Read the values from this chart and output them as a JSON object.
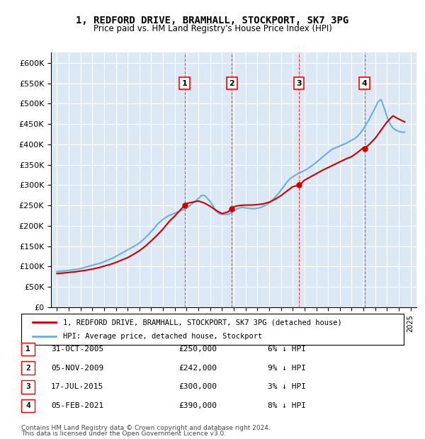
{
  "title": "1, REDFORD DRIVE, BRAMHALL, STOCKPORT, SK7 3PG",
  "subtitle": "Price paid vs. HM Land Registry's House Price Index (HPI)",
  "legend_label1": "1, REDFORD DRIVE, BRAMHALL, STOCKPORT, SK7 3PG (detached house)",
  "legend_label2": "HPI: Average price, detached house, Stockport",
  "footer1": "Contains HM Land Registry data © Crown copyright and database right 2024.",
  "footer2": "This data is licensed under the Open Government Licence v3.0.",
  "transactions": [
    {
      "num": 1,
      "date": "31-OCT-2005",
      "price": 250000,
      "pct": "6%",
      "x": 2005.83
    },
    {
      "num": 2,
      "date": "05-NOV-2009",
      "price": 242000,
      "pct": "9%",
      "x": 2009.84
    },
    {
      "num": 3,
      "date": "17-JUL-2015",
      "price": 300000,
      "pct": "3%",
      "x": 2015.54
    },
    {
      "num": 4,
      "date": "05-FEB-2021",
      "price": 390000,
      "pct": "8%",
      "x": 2021.09
    }
  ],
  "hpi_color": "#6baed6",
  "price_color": "#cc0000",
  "background_color": "#dce9f5",
  "ylim": [
    0,
    625000
  ],
  "xlim": [
    1994.5,
    2025.5
  ],
  "yticks": [
    0,
    50000,
    100000,
    150000,
    200000,
    250000,
    300000,
    350000,
    400000,
    450000,
    500000,
    550000,
    600000
  ],
  "xticks": [
    1995,
    1996,
    1997,
    1998,
    1999,
    2000,
    2001,
    2002,
    2003,
    2004,
    2005,
    2006,
    2007,
    2008,
    2009,
    2010,
    2011,
    2012,
    2013,
    2014,
    2015,
    2016,
    2017,
    2018,
    2019,
    2020,
    2021,
    2022,
    2023,
    2024,
    2025
  ],
  "hpi_x": [
    1995,
    1995.25,
    1995.5,
    1995.75,
    1996,
    1996.25,
    1996.5,
    1996.75,
    1997,
    1997.25,
    1997.5,
    1997.75,
    1998,
    1998.25,
    1998.5,
    1998.75,
    1999,
    1999.25,
    1999.5,
    1999.75,
    2000,
    2000.25,
    2000.5,
    2000.75,
    2001,
    2001.25,
    2001.5,
    2001.75,
    2002,
    2002.25,
    2002.5,
    2002.75,
    2003,
    2003.25,
    2003.5,
    2003.75,
    2004,
    2004.25,
    2004.5,
    2004.75,
    2005,
    2005.25,
    2005.5,
    2005.75,
    2006,
    2006.25,
    2006.5,
    2006.75,
    2007,
    2007.25,
    2007.5,
    2007.75,
    2008,
    2008.25,
    2008.5,
    2008.75,
    2009,
    2009.25,
    2009.5,
    2009.75,
    2010,
    2010.25,
    2010.5,
    2010.75,
    2011,
    2011.25,
    2011.5,
    2011.75,
    2012,
    2012.25,
    2012.5,
    2012.75,
    2013,
    2013.25,
    2013.5,
    2013.75,
    2014,
    2014.25,
    2014.5,
    2014.75,
    2015,
    2015.25,
    2015.5,
    2015.75,
    2016,
    2016.25,
    2016.5,
    2016.75,
    2017,
    2017.25,
    2017.5,
    2017.75,
    2018,
    2018.25,
    2018.5,
    2018.75,
    2019,
    2019.25,
    2019.5,
    2019.75,
    2020,
    2020.25,
    2020.5,
    2020.75,
    2021,
    2021.25,
    2021.5,
    2021.75,
    2022,
    2022.25,
    2022.5,
    2022.75,
    2023,
    2023.25,
    2023.5,
    2023.75,
    2024,
    2024.25,
    2024.5
  ],
  "hpi_y": [
    88000,
    88500,
    89000,
    89500,
    90500,
    91500,
    92500,
    93500,
    95000,
    97000,
    99000,
    101000,
    103000,
    105000,
    107000,
    109000,
    112000,
    115000,
    118000,
    121000,
    125000,
    129000,
    133000,
    137000,
    141000,
    145000,
    149000,
    153000,
    158000,
    164000,
    171000,
    178000,
    186000,
    194000,
    203000,
    210000,
    216000,
    221000,
    225000,
    228000,
    231000,
    234000,
    237000,
    240000,
    244000,
    249000,
    255000,
    261000,
    267000,
    274000,
    275000,
    268000,
    260000,
    248000,
    236000,
    230000,
    228000,
    228000,
    228000,
    231000,
    236000,
    241000,
    244000,
    245000,
    244000,
    243000,
    242000,
    242000,
    243000,
    245000,
    248000,
    251000,
    256000,
    262000,
    270000,
    278000,
    287000,
    297000,
    307000,
    315000,
    320000,
    325000,
    329000,
    332000,
    336000,
    340000,
    345000,
    350000,
    356000,
    362000,
    368000,
    374000,
    380000,
    386000,
    390000,
    393000,
    396000,
    399000,
    402000,
    406000,
    410000,
    414000,
    420000,
    428000,
    438000,
    450000,
    462000,
    476000,
    490000,
    505000,
    510000,
    490000,
    468000,
    450000,
    440000,
    435000,
    432000,
    430000,
    430000
  ],
  "price_x": [
    1995,
    1995.5,
    1996,
    1996.5,
    1997,
    1997.5,
    1998,
    1998.5,
    1999,
    1999.5,
    2000,
    2000.5,
    2001,
    2001.5,
    2002,
    2002.5,
    2003,
    2003.5,
    2004,
    2004.5,
    2005,
    2005.5,
    2005.83,
    2006,
    2006.5,
    2007,
    2007.5,
    2008,
    2008.5,
    2009,
    2009.5,
    2009.84,
    2010,
    2010.5,
    2011,
    2011.5,
    2012,
    2012.5,
    2013,
    2013.5,
    2014,
    2014.5,
    2015,
    2015.54,
    2015.75,
    2016,
    2016.5,
    2017,
    2017.5,
    2018,
    2018.5,
    2019,
    2019.5,
    2020,
    2020.5,
    2021,
    2021.09,
    2021.5,
    2022,
    2022.5,
    2023,
    2023.5,
    2024,
    2024.5
  ],
  "price_y": [
    83000,
    84000,
    85500,
    87000,
    89000,
    91000,
    94000,
    97000,
    101000,
    105000,
    110000,
    116000,
    122000,
    130000,
    139000,
    150000,
    163000,
    177000,
    192000,
    210000,
    224000,
    240000,
    250000,
    255000,
    258000,
    261000,
    256000,
    248000,
    238000,
    230000,
    234000,
    242000,
    247000,
    250000,
    251000,
    251000,
    252000,
    254000,
    258000,
    265000,
    274000,
    285000,
    296000,
    300000,
    305000,
    312000,
    320000,
    328000,
    336000,
    343000,
    350000,
    357000,
    364000,
    370000,
    380000,
    392000,
    390000,
    400000,
    415000,
    435000,
    455000,
    470000,
    462000,
    455000
  ]
}
